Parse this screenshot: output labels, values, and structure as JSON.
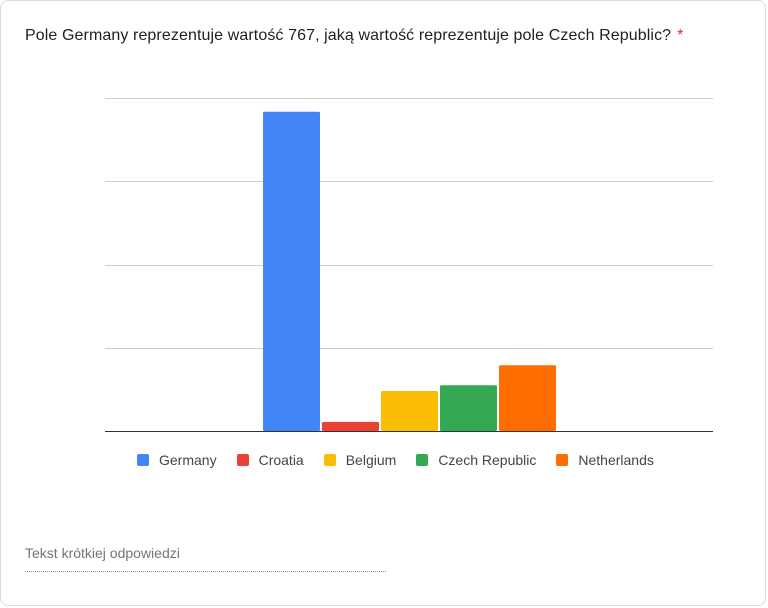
{
  "question": {
    "text": "Pole Germany reprezentuje wartość 767, jaką wartość reprezentuje pole Czech Republic?",
    "required_mark": "*"
  },
  "answer": {
    "placeholder": "Tekst krótkiej odpowiedzi",
    "value": ""
  },
  "colors": {
    "required": "#d93025",
    "grid": "#cccccc",
    "axis": "#333333"
  },
  "chart_data": {
    "type": "bar",
    "categories": [
      "Germany",
      "Croatia",
      "Belgium",
      "Czech Republic",
      "Netherlands"
    ],
    "values": [
      767,
      22,
      96,
      110,
      158
    ],
    "colors": [
      "#4285f4",
      "#ea4335",
      "#fbbc04",
      "#34a853",
      "#ff6d01"
    ],
    "ylim": [
      0,
      800
    ],
    "grid": true,
    "legend_position": "bottom",
    "title": "",
    "xlabel": "",
    "ylabel": ""
  }
}
